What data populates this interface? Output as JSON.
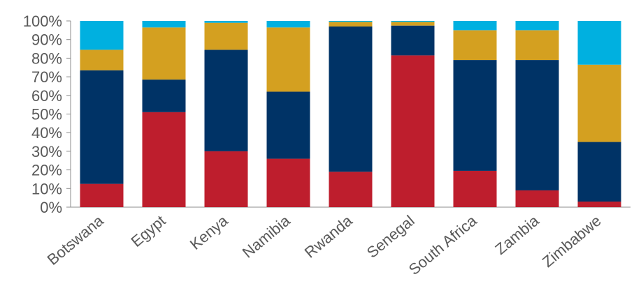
{
  "chart_data": {
    "type": "bar",
    "stacked": true,
    "percent": true,
    "categories": [
      "Botswana",
      "Egypt",
      "Kenya",
      "Namibia",
      "Rwanda",
      "Senegal",
      "South Africa",
      "Zambia",
      "Zimbabwe"
    ],
    "series": [
      {
        "color": "#be1e2d",
        "values": [
          12.5,
          51,
          30,
          26,
          19,
          81.5,
          19.5,
          9,
          3
        ]
      },
      {
        "color": "#003366",
        "values": [
          61,
          17.5,
          54.5,
          36,
          78,
          16,
          59.5,
          70,
          32
        ]
      },
      {
        "color": "#d4a020",
        "values": [
          11,
          28,
          14.5,
          34.5,
          2.5,
          2,
          16,
          16,
          41.5
        ]
      },
      {
        "color": "#00b0e0",
        "values": [
          15.5,
          3.5,
          1,
          3.5,
          0.5,
          0.5,
          5,
          5,
          23.5
        ]
      }
    ],
    "ylim": [
      0,
      100
    ],
    "yticks": [
      "0%",
      "10%",
      "20%",
      "30%",
      "40%",
      "50%",
      "60%",
      "70%",
      "80%",
      "90%",
      "100%"
    ],
    "grid": false,
    "legend": "none"
  }
}
